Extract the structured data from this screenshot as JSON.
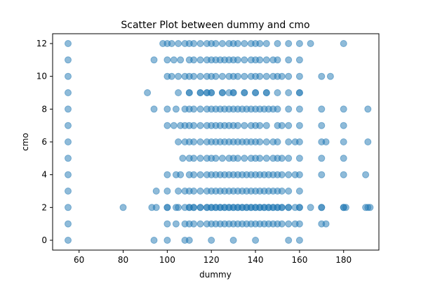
{
  "chart_data": {
    "type": "scatter",
    "title": "Scatter Plot between dummy and cmo",
    "xlabel": "dummy",
    "ylabel": "cmo",
    "xlim": [
      48,
      196
    ],
    "ylim": [
      -0.6,
      12.6
    ],
    "xticks": [
      60,
      80,
      100,
      120,
      140,
      160,
      180
    ],
    "yticks": [
      0,
      2,
      4,
      6,
      8,
      10,
      12
    ],
    "grid": false,
    "legend": false,
    "point_color": "#1f77b4",
    "series": [
      {
        "x": [
          55,
          55,
          55,
          55,
          55,
          55,
          55,
          55,
          55,
          55,
          55,
          55,
          55,
          98,
          100,
          102,
          105,
          108,
          110,
          112,
          115,
          118,
          120,
          122,
          125,
          128,
          130,
          132,
          135,
          138,
          140,
          142,
          145,
          150,
          155,
          160,
          165,
          180,
          94,
          100,
          103,
          106,
          110,
          112,
          115,
          118,
          120,
          122,
          124,
          126,
          128,
          130,
          132,
          135,
          138,
          140,
          142,
          145,
          148,
          150,
          155,
          160,
          100,
          102,
          105,
          108,
          110,
          112,
          115,
          118,
          120,
          122,
          125,
          128,
          130,
          132,
          135,
          138,
          140,
          142,
          145,
          148,
          150,
          152,
          155,
          160,
          170,
          174,
          110,
          115,
          118,
          120,
          125,
          128,
          130,
          135,
          140,
          145,
          150,
          160,
          91,
          105,
          110,
          115,
          118,
          120,
          125,
          130,
          135,
          140,
          145,
          155,
          160,
          94,
          100,
          104,
          108,
          110,
          112,
          115,
          118,
          120,
          122,
          124,
          126,
          128,
          130,
          132,
          134,
          136,
          138,
          140,
          142,
          144,
          146,
          148,
          150,
          155,
          160,
          170,
          180,
          191,
          100,
          103,
          106,
          108,
          110,
          112,
          115,
          118,
          120,
          122,
          124,
          126,
          128,
          130,
          132,
          135,
          138,
          140,
          142,
          145,
          150,
          152,
          155,
          160,
          170,
          180,
          105,
          108,
          110,
          112,
          115,
          118,
          120,
          122,
          124,
          126,
          128,
          130,
          132,
          134,
          136,
          138,
          140,
          142,
          145,
          148,
          150,
          155,
          158,
          160,
          170,
          172,
          180,
          191,
          107,
          110,
          112,
          115,
          118,
          120,
          122,
          125,
          128,
          130,
          132,
          135,
          138,
          140,
          142,
          145,
          148,
          150,
          152,
          155,
          160,
          170,
          180,
          100,
          104,
          106,
          110,
          112,
          115,
          118,
          120,
          122,
          124,
          126,
          128,
          130,
          132,
          134,
          136,
          138,
          140,
          142,
          144,
          146,
          148,
          150,
          152,
          155,
          158,
          160,
          170,
          180,
          190,
          95,
          100,
          105,
          108,
          110,
          112,
          115,
          118,
          120,
          122,
          124,
          126,
          128,
          130,
          132,
          134,
          136,
          138,
          140,
          142,
          144,
          146,
          148,
          150,
          152,
          155,
          160,
          93,
          100,
          105,
          110,
          112,
          115,
          118,
          120,
          122,
          124,
          126,
          128,
          130,
          132,
          134,
          136,
          138,
          140,
          142,
          144,
          146,
          148,
          150,
          152,
          155,
          158,
          160,
          165,
          170,
          180,
          191,
          80,
          95,
          100,
          104,
          108,
          110,
          112,
          115,
          118,
          120,
          122,
          124,
          126,
          128,
          130,
          132,
          134,
          136,
          138,
          140,
          142,
          144,
          146,
          148,
          150,
          152,
          155,
          160,
          170,
          180,
          181,
          190,
          192,
          100,
          104,
          108,
          110,
          112,
          115,
          118,
          120,
          122,
          124,
          126,
          128,
          130,
          132,
          134,
          136,
          138,
          140,
          142,
          144,
          146,
          148,
          150,
          152,
          155,
          158,
          160,
          170,
          172,
          94,
          100,
          108,
          110,
          120,
          130,
          140,
          155,
          160
        ],
        "y": [
          0,
          1,
          2,
          3,
          4,
          5,
          6,
          7,
          8,
          9,
          10,
          11,
          12,
          12,
          12,
          12,
          12,
          12,
          12,
          12,
          12,
          12,
          12,
          12,
          12,
          12,
          12,
          12,
          12,
          12,
          12,
          12,
          12,
          12,
          12,
          12,
          12,
          12,
          11,
          11,
          11,
          11,
          11,
          11,
          11,
          11,
          11,
          11,
          11,
          11,
          11,
          11,
          11,
          11,
          11,
          11,
          11,
          11,
          11,
          11,
          11,
          11,
          10,
          10,
          10,
          10,
          10,
          10,
          10,
          10,
          10,
          10,
          10,
          10,
          10,
          10,
          10,
          10,
          10,
          10,
          10,
          10,
          10,
          10,
          10,
          10,
          10,
          10,
          9,
          9,
          9,
          9,
          9,
          9,
          9,
          9,
          9,
          9,
          9,
          9,
          9,
          9,
          9,
          9,
          9,
          9,
          9,
          9,
          9,
          9,
          9,
          9,
          9,
          8,
          8,
          8,
          8,
          8,
          8,
          8,
          8,
          8,
          8,
          8,
          8,
          8,
          8,
          8,
          8,
          8,
          8,
          8,
          8,
          8,
          8,
          8,
          8,
          8,
          8,
          8,
          8,
          8,
          7,
          7,
          7,
          7,
          7,
          7,
          7,
          7,
          7,
          7,
          7,
          7,
          7,
          7,
          7,
          7,
          7,
          7,
          7,
          7,
          7,
          7,
          7,
          7,
          7,
          7,
          6,
          6,
          6,
          6,
          6,
          6,
          6,
          6,
          6,
          6,
          6,
          6,
          6,
          6,
          6,
          6,
          6,
          6,
          6,
          6,
          6,
          6,
          6,
          6,
          6,
          6,
          6,
          6,
          5,
          5,
          5,
          5,
          5,
          5,
          5,
          5,
          5,
          5,
          5,
          5,
          5,
          5,
          5,
          5,
          5,
          5,
          5,
          5,
          5,
          5,
          5,
          4,
          4,
          4,
          4,
          4,
          4,
          4,
          4,
          4,
          4,
          4,
          4,
          4,
          4,
          4,
          4,
          4,
          4,
          4,
          4,
          4,
          4,
          4,
          4,
          4,
          4,
          4,
          4,
          4,
          4,
          3,
          3,
          3,
          3,
          3,
          3,
          3,
          3,
          3,
          3,
          3,
          3,
          3,
          3,
          3,
          3,
          3,
          3,
          3,
          3,
          3,
          3,
          3,
          3,
          3,
          3,
          3,
          2,
          2,
          2,
          2,
          2,
          2,
          2,
          2,
          2,
          2,
          2,
          2,
          2,
          2,
          2,
          2,
          2,
          2,
          2,
          2,
          2,
          2,
          2,
          2,
          2,
          2,
          2,
          2,
          2,
          2,
          2,
          2,
          2,
          2,
          2,
          2,
          2,
          2,
          2,
          2,
          2,
          2,
          2,
          2,
          2,
          2,
          2,
          2,
          2,
          2,
          2,
          2,
          2,
          2,
          2,
          2,
          2,
          2,
          2,
          2,
          2,
          2,
          2,
          2,
          1,
          1,
          1,
          1,
          1,
          1,
          1,
          1,
          1,
          1,
          1,
          1,
          1,
          1,
          1,
          1,
          1,
          1,
          1,
          1,
          1,
          1,
          1,
          1,
          1,
          1,
          1,
          1,
          1,
          0,
          0,
          0,
          0,
          0,
          0,
          0,
          0,
          0
        ]
      }
    ]
  }
}
